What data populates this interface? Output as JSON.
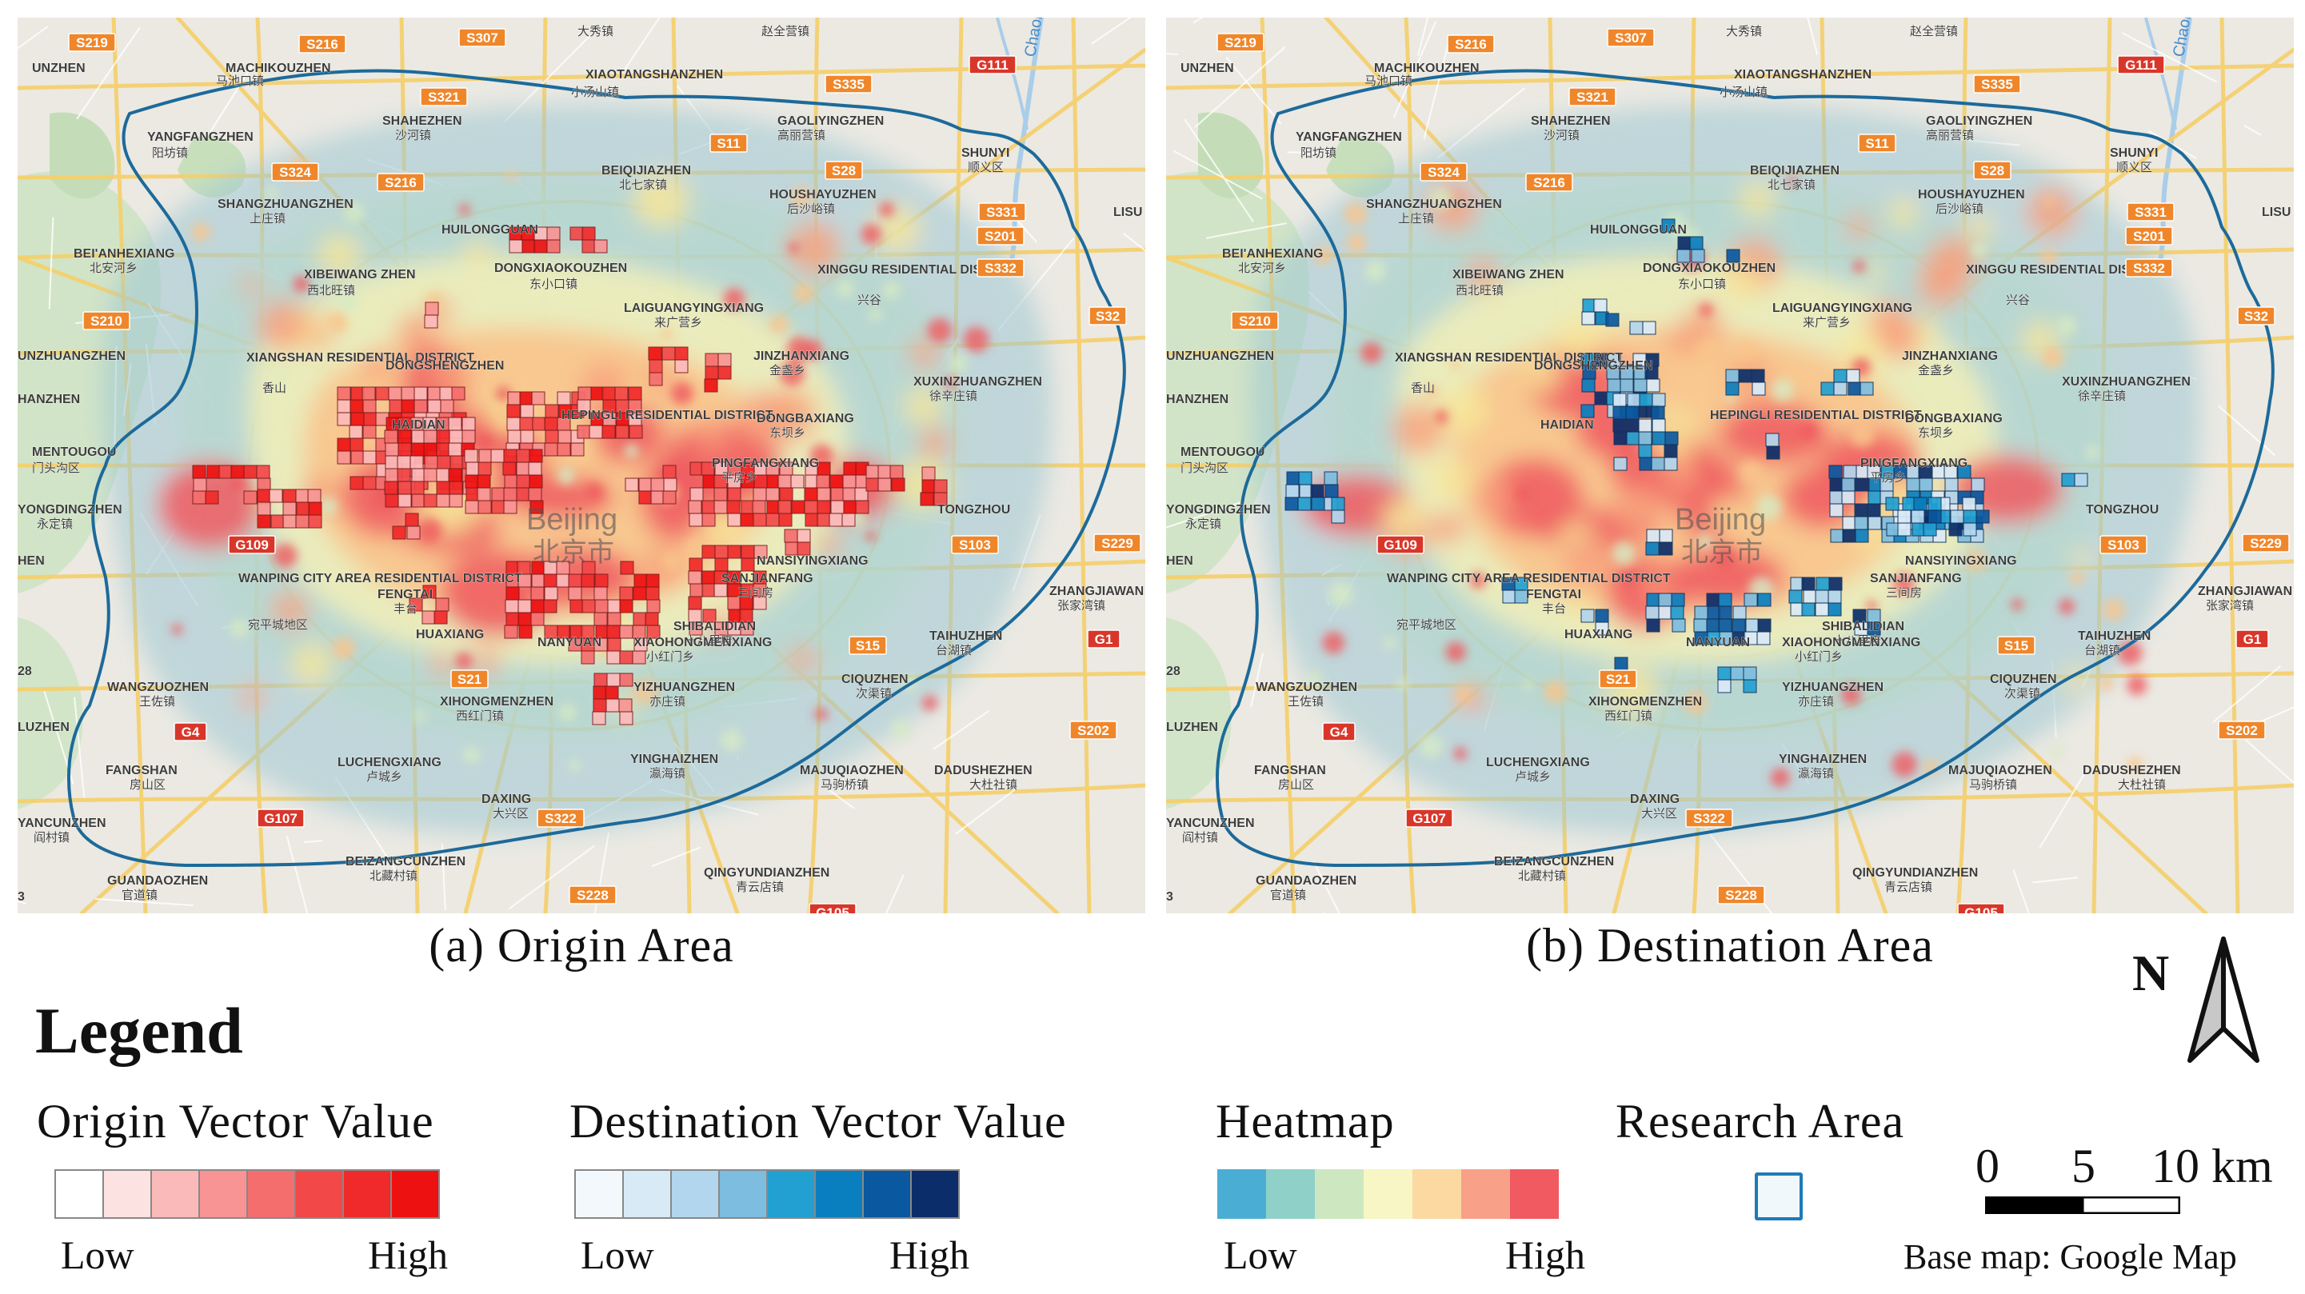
{
  "panels": [
    {
      "caption": "(a) Origin Area",
      "layer": "origin",
      "labels": [
        {
          "t": "S219"
        },
        {
          "t": "S216"
        },
        {
          "t": "S307"
        },
        {
          "t": "大秀镇"
        },
        {
          "t": "赵全营镇"
        },
        {
          "t": "UNZHEN"
        },
        {
          "t": "MACHIKOUZHEN"
        },
        {
          "t": "马池口镇"
        },
        {
          "t": "XIAOTANGSHANZHEN"
        },
        {
          "t": "小汤山镇"
        },
        {
          "t": "S321"
        },
        {
          "t": "S335"
        },
        {
          "t": "G111"
        },
        {
          "t": "Chaobai"
        },
        {
          "t": "GAOLIYINGZHEN"
        },
        {
          "t": "高丽营镇"
        },
        {
          "t": "YANGFANGZHEN"
        },
        {
          "t": "阳坊镇"
        },
        {
          "t": "SHAHEZHEN"
        },
        {
          "t": "沙河镇"
        },
        {
          "t": "S11"
        },
        {
          "t": "SHUNYI"
        },
        {
          "t": "顺义区"
        },
        {
          "t": "S324"
        },
        {
          "t": "S216"
        },
        {
          "t": "BEIQIJIAZHEN"
        },
        {
          "t": "北七家镇"
        },
        {
          "t": "S28"
        },
        {
          "t": "HOUSHAYUZHEN"
        },
        {
          "t": "后沙峪镇"
        },
        {
          "t": "SHANGZHUANGZHEN"
        },
        {
          "t": "上庄镇"
        },
        {
          "t": "S331"
        },
        {
          "t": "LISU"
        },
        {
          "t": "S201"
        },
        {
          "t": "HUILONGGUAN"
        },
        {
          "t": "BEI'ANHEXIANG"
        },
        {
          "t": "北安河乡"
        },
        {
          "t": "XIBEIWANG ZHEN"
        },
        {
          "t": "西北旺镇"
        },
        {
          "t": "DONGXIAOKOUZHEN"
        },
        {
          "t": "东小口镇"
        },
        {
          "t": "XINGGU RESIDENTIAL DISTRICT"
        },
        {
          "t": "兴谷"
        },
        {
          "t": "S332"
        },
        {
          "t": "LAIGUANGYINGXIANG"
        },
        {
          "t": "来广营乡"
        },
        {
          "t": "S210"
        },
        {
          "t": "S32"
        },
        {
          "t": "UNZHUANGZHEN"
        },
        {
          "t": "XIANGSHAN RESIDENTIAL DISTRICT"
        },
        {
          "t": "香山"
        },
        {
          "t": "JINZHANXIANG"
        },
        {
          "t": "金盏乡"
        },
        {
          "t": "DONGSHENGZHEN"
        },
        {
          "t": "XUXINZHUANGZHEN"
        },
        {
          "t": "徐辛庄镇"
        },
        {
          "t": "HANZHEN"
        },
        {
          "t": "HAIDIAN"
        },
        {
          "t": "HEPINGLI RESIDENTIAL DISTRICT"
        },
        {
          "t": "DONGBAXIANG"
        },
        {
          "t": "东坝乡"
        },
        {
          "t": "MENTOUGOU"
        },
        {
          "t": "门头沟区"
        },
        {
          "t": "PINGFANGXIANG"
        },
        {
          "t": "平房乡"
        },
        {
          "t": "YONGDINGZHEN"
        },
        {
          "t": "永定镇"
        },
        {
          "t": "Beijing"
        },
        {
          "t": "北京市"
        },
        {
          "t": "TONGZHOU"
        },
        {
          "t": "G109"
        },
        {
          "t": "S103"
        },
        {
          "t": "S229"
        },
        {
          "t": "HEN"
        },
        {
          "t": "WANPING CITY AREA RESIDENTIAL DISTRICT"
        },
        {
          "t": "宛平城地区"
        },
        {
          "t": "FENGTAI"
        },
        {
          "t": "丰台"
        },
        {
          "t": "SANJIANFANG"
        },
        {
          "t": "三间房"
        },
        {
          "t": "NANSIYINGXIANG"
        },
        {
          "t": "ZHANGJIAWAN"
        },
        {
          "t": "张家湾镇"
        },
        {
          "t": "HUAXIANG"
        },
        {
          "t": "NANYUAN"
        },
        {
          "t": "SHIBALIDIAN"
        },
        {
          "t": "十八里店"
        },
        {
          "t": "XIAOHONGMENXIANG"
        },
        {
          "t": "小红门乡"
        },
        {
          "t": "S15"
        },
        {
          "t": "TAIHUZHEN"
        },
        {
          "t": "台湖镇"
        },
        {
          "t": "G1"
        },
        {
          "t": "28"
        },
        {
          "t": "WANGZUOZHEN"
        },
        {
          "t": "王佐镇"
        },
        {
          "t": "S21"
        },
        {
          "t": "XIHONGMENZHEN"
        },
        {
          "t": "西红门镇"
        },
        {
          "t": "YIZHUANGZHEN"
        },
        {
          "t": "亦庄镇"
        },
        {
          "t": "CIQUZHEN"
        },
        {
          "t": "次渠镇"
        },
        {
          "t": "LUZHEN"
        },
        {
          "t": "G4"
        },
        {
          "t": "S202"
        },
        {
          "t": "FANGSHAN"
        },
        {
          "t": "房山区"
        },
        {
          "t": "LUCHENGXIANG"
        },
        {
          "t": "卢城乡"
        },
        {
          "t": "YINGHAIZHEN"
        },
        {
          "t": "瀛海镇"
        },
        {
          "t": "MAJUQIAOZHEN"
        },
        {
          "t": "马驹桥镇"
        },
        {
          "t": "DADUSHEZHEN"
        },
        {
          "t": "大杜社镇"
        },
        {
          "t": "DAXING"
        },
        {
          "t": "大兴区"
        },
        {
          "t": "YANCUNZHEN"
        },
        {
          "t": "阎村镇"
        },
        {
          "t": "G107"
        },
        {
          "t": "S322"
        },
        {
          "t": "BEIZANGCUNZHEN"
        },
        {
          "t": "北藏村镇"
        },
        {
          "t": "QINGYUNDIANZHEN"
        },
        {
          "t": "青云店镇"
        },
        {
          "t": "GUANDAOZHEN"
        },
        {
          "t": "官道镇"
        },
        {
          "t": "3"
        },
        {
          "t": "S228"
        },
        {
          "t": "G105"
        }
      ]
    },
    {
      "caption": "(b) Destination Area",
      "layer": "destination",
      "labels": [
        {
          "t": "S219"
        },
        {
          "t": "S216"
        },
        {
          "t": "S307"
        },
        {
          "t": "大秀镇"
        },
        {
          "t": "赵全营镇"
        },
        {
          "t": "UNZHEN"
        },
        {
          "t": "MACHIKOUZHEN"
        },
        {
          "t": "马池口镇"
        },
        {
          "t": "XIAOTANGSHANZHEN"
        },
        {
          "t": "小汤山镇"
        },
        {
          "t": "S321"
        },
        {
          "t": "S335"
        },
        {
          "t": "G111"
        },
        {
          "t": "Chaobai"
        },
        {
          "t": "GAOLIYINGZHEN"
        },
        {
          "t": "高丽营镇"
        },
        {
          "t": "YANGFANGZHEN"
        },
        {
          "t": "阳坊镇"
        },
        {
          "t": "SHAHEZHEN"
        },
        {
          "t": "沙河镇"
        },
        {
          "t": "S11"
        },
        {
          "t": "SHUNYI"
        },
        {
          "t": "顺义区"
        },
        {
          "t": "S324"
        },
        {
          "t": "S216"
        },
        {
          "t": "BEIQIJIAZHEN"
        },
        {
          "t": "北七家镇"
        },
        {
          "t": "S28"
        },
        {
          "t": "HOUSHAYUZHEN"
        },
        {
          "t": "后沙峪镇"
        },
        {
          "t": "SHANGZHUANGZHEN"
        },
        {
          "t": "上庄镇"
        },
        {
          "t": "S331"
        },
        {
          "t": "LISU"
        },
        {
          "t": "S201"
        },
        {
          "t": "HUILONGGUAN"
        },
        {
          "t": "BEI'ANHEXIANG"
        },
        {
          "t": "北安河乡"
        },
        {
          "t": "XIBEIWANG ZHEN"
        },
        {
          "t": "西北旺镇"
        },
        {
          "t": "DONGXIAOKOUZHEN"
        },
        {
          "t": "东小口镇"
        },
        {
          "t": "XINGGU RESIDENTIAL DISTRICT"
        },
        {
          "t": "兴谷"
        },
        {
          "t": "S332"
        },
        {
          "t": "LAIGUANGYINGXIANG"
        },
        {
          "t": "来广营乡"
        },
        {
          "t": "S210"
        },
        {
          "t": "S32"
        },
        {
          "t": "UNZHUANGZHEN"
        },
        {
          "t": "XIANGSHAN RESIDENTIAL DISTRICT"
        },
        {
          "t": "香山"
        },
        {
          "t": "JINZHANXIANG"
        },
        {
          "t": "金盏乡"
        },
        {
          "t": "DONGSHENGZHEN"
        },
        {
          "t": "XUXINZHUANGZHEN"
        },
        {
          "t": "徐辛庄镇"
        },
        {
          "t": "HANZHEN"
        },
        {
          "t": "HAIDIAN"
        },
        {
          "t": "HEPINGLI RESIDENTIAL DISTRICT"
        },
        {
          "t": "DONGBAXIANG"
        },
        {
          "t": "东坝乡"
        },
        {
          "t": "MENTOUGOU"
        },
        {
          "t": "门头沟区"
        },
        {
          "t": "PINGFANGXIANG"
        },
        {
          "t": "平房乡"
        },
        {
          "t": "YONGDINGZHEN"
        },
        {
          "t": "永定镇"
        },
        {
          "t": "Beijing"
        },
        {
          "t": "北京市"
        },
        {
          "t": "TONGZHOU"
        },
        {
          "t": "G109"
        },
        {
          "t": "S103"
        },
        {
          "t": "S229"
        },
        {
          "t": "HEN"
        },
        {
          "t": "WANPING CITY AREA RESIDENTIAL DISTRICT"
        },
        {
          "t": "宛平城地区"
        },
        {
          "t": "FENGTAI"
        },
        {
          "t": "丰台"
        },
        {
          "t": "SANJIANFANG"
        },
        {
          "t": "三间房"
        },
        {
          "t": "NANSIYINGXIANG"
        },
        {
          "t": "ZHANGJIAWAN"
        },
        {
          "t": "张家湾镇"
        },
        {
          "t": "HUAXIANG"
        },
        {
          "t": "NANYUAN"
        },
        {
          "t": "SHIBALIDIAN"
        },
        {
          "t": "十八里店"
        },
        {
          "t": "XIAOHONGMENXIANG"
        },
        {
          "t": "小红门乡"
        },
        {
          "t": "S15"
        },
        {
          "t": "TAIHUZHEN"
        },
        {
          "t": "台湖镇"
        },
        {
          "t": "G1"
        },
        {
          "t": "28"
        },
        {
          "t": "WANGZUOZHEN"
        },
        {
          "t": "王佐镇"
        },
        {
          "t": "S21"
        },
        {
          "t": "XIHONGMENZHEN"
        },
        {
          "t": "西红门镇"
        },
        {
          "t": "YIZHUANGZHEN"
        },
        {
          "t": "亦庄镇"
        },
        {
          "t": "CIQUZHEN"
        },
        {
          "t": "次渠镇"
        },
        {
          "t": "LUZHEN"
        },
        {
          "t": "G4"
        },
        {
          "t": "S202"
        },
        {
          "t": "FANGSHAN"
        },
        {
          "t": "房山区"
        },
        {
          "t": "LUCHENGXIANG"
        },
        {
          "t": "卢城乡"
        },
        {
          "t": "YINGHAIZHEN"
        },
        {
          "t": "瀛海镇"
        },
        {
          "t": "MAJUQIAOZHEN"
        },
        {
          "t": "马驹桥镇"
        },
        {
          "t": "DADUSHEZHEN"
        },
        {
          "t": "大杜社镇"
        },
        {
          "t": "DAXING"
        },
        {
          "t": "大兴区"
        },
        {
          "t": "YANCUNZHEN"
        },
        {
          "t": "阎村镇"
        },
        {
          "t": "G107"
        },
        {
          "t": "S322"
        },
        {
          "t": "BEIZANGCUNZHEN"
        },
        {
          "t": "北藏村镇"
        },
        {
          "t": "QINGYUNDIANZHEN"
        },
        {
          "t": "青云店镇"
        },
        {
          "t": "GUANDAOZHEN"
        },
        {
          "t": "官道镇"
        },
        {
          "t": "3"
        },
        {
          "t": "S228"
        },
        {
          "t": "G105"
        }
      ]
    }
  ],
  "legend": {
    "title": "Legend",
    "origin": {
      "heading": "Origin Vector Value",
      "low": "Low",
      "high": "High",
      "colors": [
        "#ffffff",
        "#fde2e2",
        "#fbbaba",
        "#f89494",
        "#f56e6e",
        "#f24848",
        "#f02a2a",
        "#ee1111"
      ]
    },
    "destination": {
      "heading": "Destination Vector Value",
      "low": "Low",
      "high": "High",
      "colors": [
        "#f3f8fd",
        "#d9eaf7",
        "#b2d6ee",
        "#7dbde0",
        "#22a0d2",
        "#0a7fbf",
        "#0a58a0",
        "#0b2e6a"
      ]
    },
    "heatmap": {
      "heading": "Heatmap",
      "low": "Low",
      "high": "High",
      "colors": [
        "#4aaed4",
        "#8fd0c8",
        "#cde8c0",
        "#f7f6c4",
        "#fbd9a0",
        "#f9a088",
        "#f05a60"
      ]
    },
    "research_area": {
      "heading": "Research Area",
      "color": "#1e7ab8"
    }
  },
  "north_arrow": {
    "label": "N"
  },
  "scale": {
    "labels": [
      "0",
      "5",
      "10 km"
    ]
  },
  "credit": "Base map: Google Map"
}
